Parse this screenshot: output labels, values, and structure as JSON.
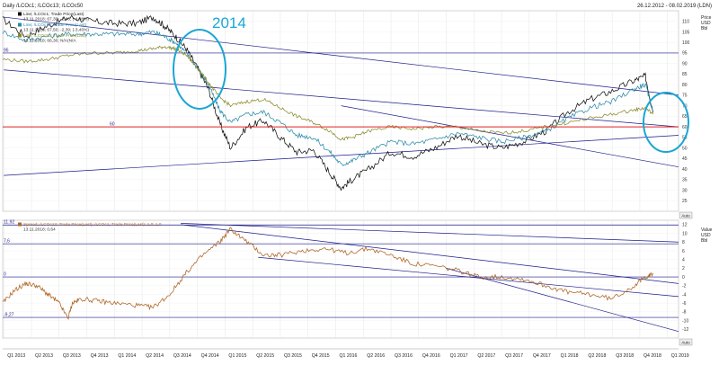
{
  "header": {
    "title": "Daily /LCOc1; /LCOc13; /LCOc50",
    "date_range": "26.12.2012 - 08.02.2019 (LDN)"
  },
  "annotations": {
    "year_label": "2014",
    "year_label_color": "#1aa6d4"
  },
  "colors": {
    "lcoc1": "#111111",
    "lcoc13": "#2a8aa8",
    "lcoc50": "#8a8a2a",
    "spread": "#b06a2a",
    "channel": "#1c1c8c",
    "red_line": "#e02020",
    "highlight_circle": "#1aa6d4"
  },
  "chart_data": [
    {
      "type": "line",
      "panel": "price",
      "ylabel": "Price\nUSD\nBbl",
      "ylim": [
        20,
        115
      ],
      "yticks": [
        25,
        30,
        35,
        40,
        45,
        50,
        55,
        60,
        65,
        70,
        75,
        80,
        85,
        90,
        95,
        100,
        105,
        110
      ],
      "legend": [
        {
          "name": "Line; /LCOc1; Trade Price(Last)",
          "value_line": "13.11.2018; 67,30; -2,86; (-4,08%)"
        },
        {
          "name": "Line; /LCOc13; Trade Price(Last)",
          "value_line": "13.11.2018; 67,50; -2,39; (-3,40%)"
        },
        {
          "name": "Line; /LCOc50; Trade Price(Last)",
          "value_line": "13.11.2018; 66,30; N/A(N/A"
        }
      ],
      "level_labels": [
        "95",
        "60"
      ],
      "horizontal_levels": [
        95,
        60
      ],
      "series": [
        {
          "name": "LCOc1",
          "x": [
            2012.99,
            2013.2,
            2013.4,
            2013.6,
            2013.8,
            2014.0,
            2014.2,
            2014.35,
            2014.45,
            2014.55,
            2014.65,
            2014.75,
            2014.85,
            2014.95,
            2015.05,
            2015.2,
            2015.35,
            2015.5,
            2015.65,
            2015.8,
            2015.95,
            2016.05,
            2016.15,
            2016.3,
            2016.5,
            2016.7,
            2016.9,
            2017.1,
            2017.3,
            2017.5,
            2017.7,
            2017.9,
            2018.1,
            2018.3,
            2018.5,
            2018.7,
            2018.8,
            2018.87
          ],
          "values": [
            111,
            103,
            108,
            112,
            110,
            109,
            109,
            112,
            108,
            103,
            97,
            88,
            78,
            62,
            50,
            60,
            63,
            55,
            48,
            49,
            38,
            31,
            35,
            40,
            48,
            46,
            50,
            56,
            52,
            50,
            53,
            58,
            67,
            73,
            77,
            82,
            84,
            67
          ]
        },
        {
          "name": "LCOc13",
          "x": [
            2012.99,
            2013.2,
            2013.4,
            2013.6,
            2013.8,
            2014.0,
            2014.2,
            2014.35,
            2014.45,
            2014.55,
            2014.65,
            2014.75,
            2014.85,
            2014.95,
            2015.05,
            2015.2,
            2015.35,
            2015.5,
            2015.65,
            2015.8,
            2015.95,
            2016.05,
            2016.15,
            2016.3,
            2016.5,
            2016.7,
            2016.9,
            2017.1,
            2017.3,
            2017.5,
            2017.7,
            2017.9,
            2018.1,
            2018.3,
            2018.5,
            2018.7,
            2018.8,
            2018.87
          ],
          "values": [
            105,
            101,
            103,
            104,
            104,
            104,
            104,
            105,
            103,
            100,
            95,
            88,
            80,
            68,
            62,
            66,
            67,
            62,
            56,
            55,
            48,
            42,
            44,
            48,
            53,
            52,
            54,
            57,
            55,
            53,
            55,
            58,
            64,
            69,
            72,
            78,
            80,
            67
          ]
        },
        {
          "name": "LCOc50",
          "x": [
            2012.99,
            2013.2,
            2013.4,
            2013.6,
            2013.8,
            2014.0,
            2014.2,
            2014.35,
            2014.45,
            2014.55,
            2014.65,
            2014.75,
            2014.85,
            2014.95,
            2015.05,
            2015.2,
            2015.35,
            2015.5,
            2015.65,
            2015.8,
            2015.95,
            2016.05,
            2016.15,
            2016.3,
            2016.5,
            2016.7,
            2016.9,
            2017.1,
            2017.3,
            2017.5,
            2017.7,
            2017.9,
            2018.1,
            2018.3,
            2018.5,
            2018.7,
            2018.8,
            2018.87
          ],
          "values": [
            92,
            91,
            92,
            94,
            95,
            95,
            96,
            97,
            98,
            97,
            94,
            88,
            81,
            74,
            70,
            72,
            73,
            69,
            65,
            62,
            58,
            54,
            55,
            58,
            60,
            59,
            60,
            60,
            58,
            57,
            58,
            60,
            62,
            64,
            66,
            68,
            69,
            66
          ]
        }
      ]
    },
    {
      "type": "line",
      "panel": "spread",
      "ylabel": "Value\nUSD\nBbl",
      "ylim": [
        -14,
        13
      ],
      "yticks": [
        -12,
        -10,
        -8,
        -6,
        -4,
        -2,
        0,
        2,
        4,
        6,
        8,
        10,
        12
      ],
      "legend": [
        {
          "name": "Spread; /LCOc13; Trade Price(Last); /LCOc1; Trade Price(Last); 1,0; 1,0",
          "value_line": "13.11.2018; 0,64"
        }
      ],
      "level_labels": [
        "11,92",
        "7,6",
        "0",
        "-9,27"
      ],
      "horizontal_levels": [
        11.92,
        7.6,
        0,
        -9.27
      ],
      "series": [
        {
          "name": "Spread",
          "x": [
            2012.99,
            2013.1,
            2013.2,
            2013.3,
            2013.4,
            2013.5,
            2013.58,
            2013.62,
            2013.7,
            2013.85,
            2014.0,
            2014.2,
            2014.35,
            2014.5,
            2014.65,
            2014.8,
            2014.95,
            2015.05,
            2015.2,
            2015.35,
            2015.5,
            2015.7,
            2015.9,
            2016.1,
            2016.3,
            2016.5,
            2016.7,
            2016.9,
            2017.1,
            2017.3,
            2017.5,
            2017.7,
            2017.9,
            2018.1,
            2018.3,
            2018.5,
            2018.7,
            2018.8,
            2018.87
          ],
          "values": [
            -6,
            -3,
            -1.5,
            -2,
            -4,
            -6,
            -9.5,
            -6,
            -5,
            -5.5,
            -6,
            -6.5,
            -7,
            -4,
            1,
            5,
            8,
            11,
            8,
            5,
            5,
            6,
            6.5,
            5.5,
            6.5,
            5,
            3,
            2.5,
            1.5,
            0,
            0,
            -0.5,
            -2,
            -3.5,
            -4,
            -5,
            -2,
            0,
            0.64
          ]
        }
      ]
    }
  ],
  "x_axis": {
    "labels": [
      "Q1 2013",
      "Q2 2013",
      "Q3 2013",
      "Q4 2013",
      "Q1 2014",
      "Q2 2014",
      "Q3 2014",
      "Q4 2014",
      "Q1 2015",
      "Q2 2015",
      "Q3 2015",
      "Q4 2015",
      "Q1 2016",
      "Q2 2016",
      "Q3 2016",
      "Q4 2016",
      "Q1 2017",
      "Q2 2017",
      "Q3 2017",
      "Q4 2017",
      "Q1 2018",
      "Q2 2018",
      "Q3 2018",
      "Q4 2018",
      "Q1 2019"
    ],
    "xlim": [
      2012.99,
      2019.1
    ]
  },
  "controls": {
    "auto_label_top": "Auto",
    "auto_label_bottom": "Auto"
  }
}
